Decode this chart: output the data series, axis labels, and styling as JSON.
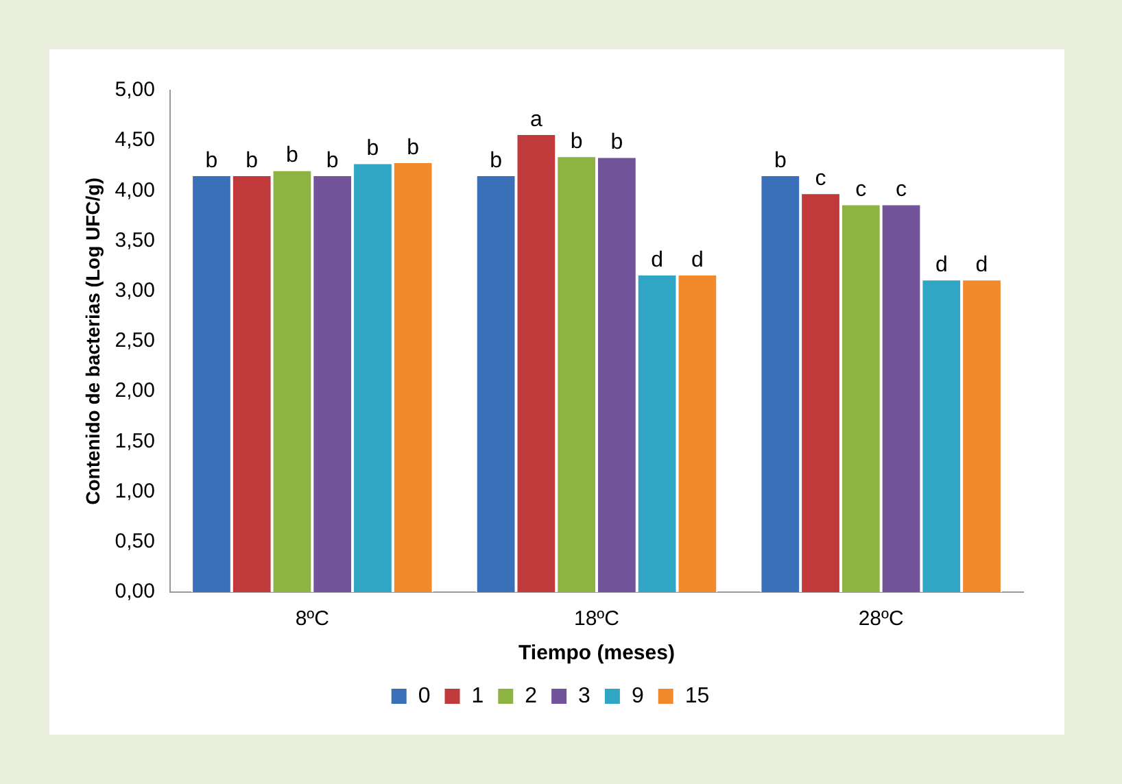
{
  "chart_data": {
    "type": "bar",
    "xlabel": "Tiempo (meses)",
    "ylabel": "Contenido de bacterias (Log UFC/g)",
    "categories": [
      "8ºC",
      "18ºC",
      "28ºC"
    ],
    "series": [
      {
        "name": "0",
        "color": "#3a70b8",
        "values": [
          4.16,
          4.16,
          4.16
        ],
        "value_labels": [
          "b",
          "b",
          "b"
        ]
      },
      {
        "name": "1",
        "color": "#c0393b",
        "values": [
          4.16,
          4.57,
          3.98
        ],
        "value_labels": [
          "b",
          "a",
          "c"
        ]
      },
      {
        "name": "2",
        "color": "#8db443",
        "values": [
          4.21,
          4.35,
          3.87
        ],
        "value_labels": [
          "b",
          "b",
          "c"
        ]
      },
      {
        "name": "3",
        "color": "#71549a",
        "values": [
          4.16,
          4.34,
          3.87
        ],
        "value_labels": [
          "b",
          "b",
          "c"
        ]
      },
      {
        "name": "9",
        "color": "#31a6c4",
        "values": [
          4.28,
          3.17,
          3.12
        ],
        "value_labels": [
          "b",
          "d",
          "d"
        ]
      },
      {
        "name": "15",
        "color": "#f28a2b",
        "values": [
          4.29,
          3.17,
          3.12
        ],
        "value_labels": [
          "b",
          "d",
          "d"
        ]
      }
    ],
    "ylim": [
      0,
      5
    ],
    "yticks": [
      {
        "value": 0,
        "label": "0,00"
      },
      {
        "value": 0.5,
        "label": "0,50"
      },
      {
        "value": 1,
        "label": "1,00"
      },
      {
        "value": 1.5,
        "label": "1,50"
      },
      {
        "value": 2,
        "label": "2,00"
      },
      {
        "value": 2.5,
        "label": "2,50"
      },
      {
        "value": 3,
        "label": "3,00"
      },
      {
        "value": 3.5,
        "label": "3,50"
      },
      {
        "value": 4,
        "label": "4,00"
      },
      {
        "value": 4.5,
        "label": "4,50"
      },
      {
        "value": 5,
        "label": "5,00"
      }
    ],
    "grid": false,
    "legend": "bottom"
  }
}
